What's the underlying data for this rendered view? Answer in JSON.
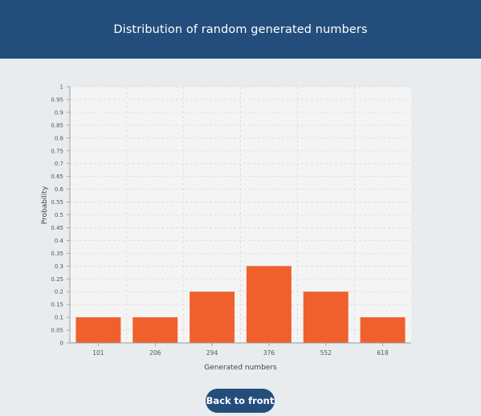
{
  "header": {
    "title": "Distribution of random generated numbers"
  },
  "chart_data": {
    "type": "bar",
    "categories": [
      "101",
      "206",
      "294",
      "376",
      "552",
      "618"
    ],
    "values": [
      0.1,
      0.1,
      0.2,
      0.3,
      0.2,
      0.1
    ],
    "title": "",
    "xlabel": "Generated numbers",
    "ylabel": "Probability",
    "ylim": [
      0,
      1
    ],
    "yticks": [
      "0",
      "0.05",
      "0.1",
      "0.15",
      "0.2",
      "0.25",
      "0.3",
      "0.35",
      "0.4",
      "0.45",
      "0.5",
      "0.55",
      "0.6",
      "0.65",
      "0.7",
      "0.75",
      "0.8",
      "0.85",
      "0.9",
      "0.95",
      "1"
    ],
    "grid": true,
    "bar_color": "#f0602d",
    "plot_background": "#f4f4f4"
  },
  "actions": {
    "back_label": "Back to front"
  }
}
